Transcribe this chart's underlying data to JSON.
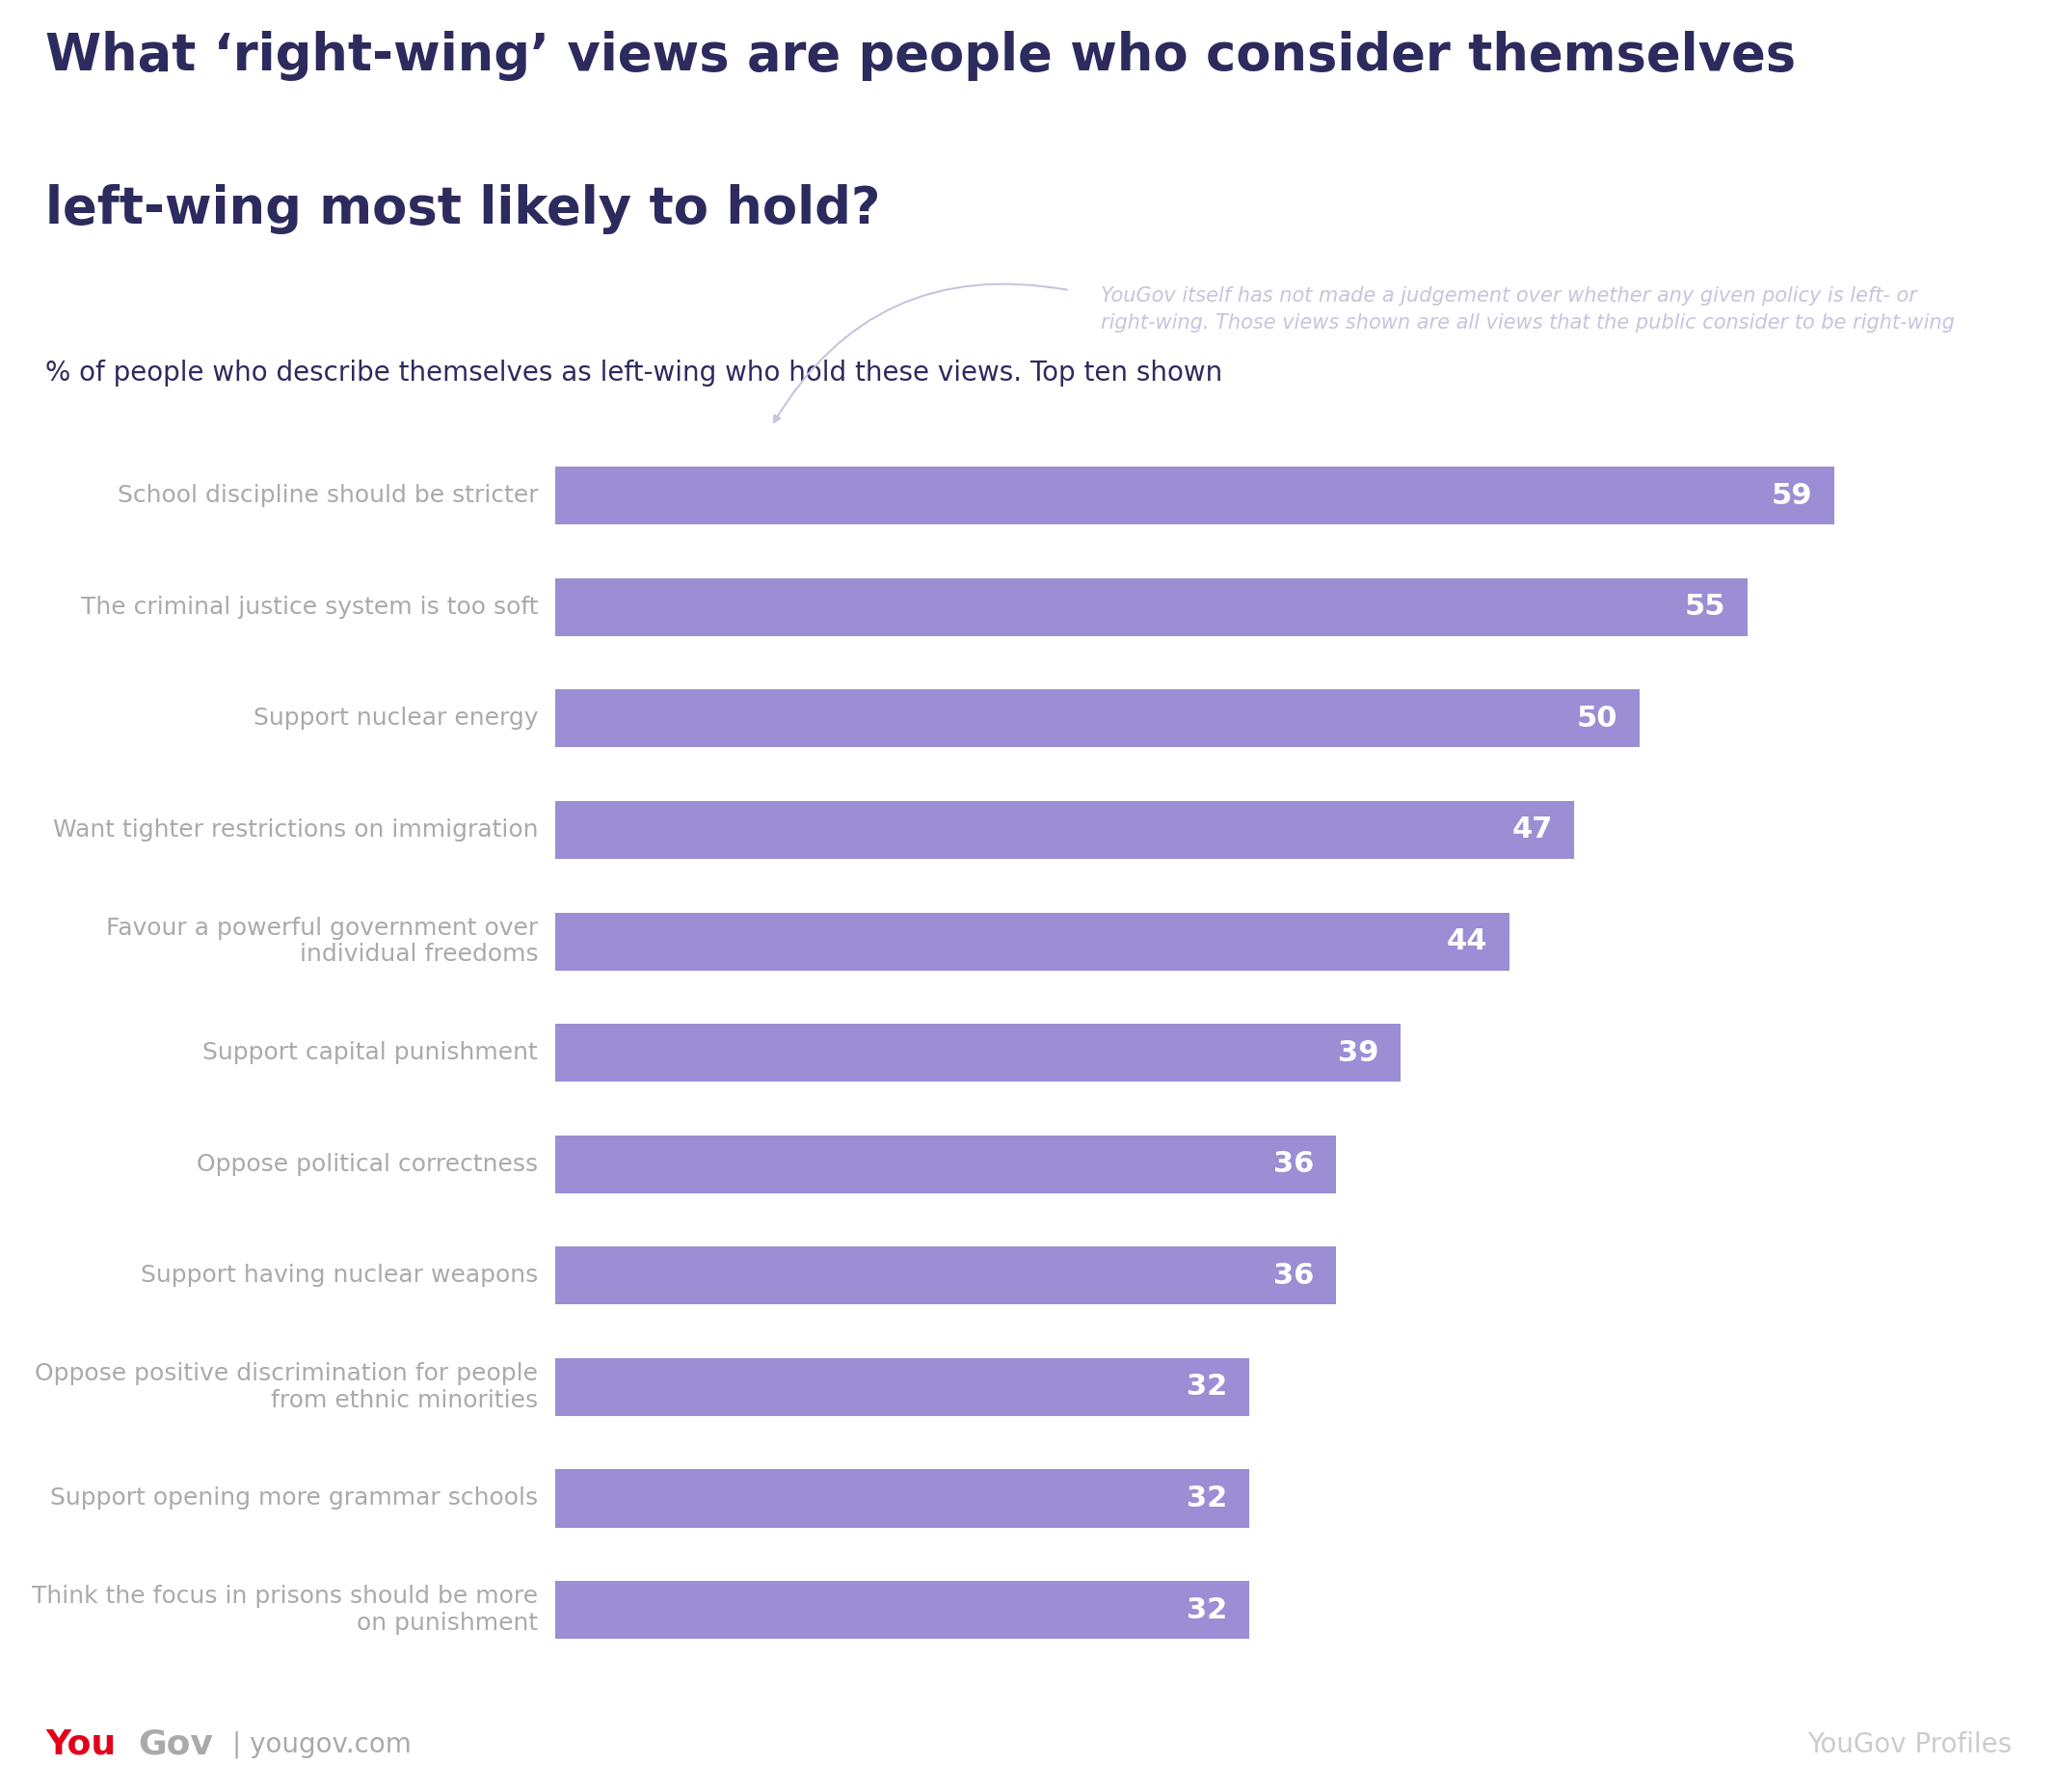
{
  "title_line1": "What ‘right-wing’ views are people who consider themselves",
  "title_line2": "left-wing most likely to hold?",
  "subtitle": "% of people who describe themselves as left-wing who hold these views. Top ten shown",
  "annotation": "YouGov itself has not made a judgement over whether any given policy is left- or\nright-wing. Those views shown are all views that the public consider to be right-wing",
  "categories": [
    "School discipline should be stricter",
    "The criminal justice system is too soft",
    "Support nuclear energy",
    "Want tighter restrictions on immigration",
    "Favour a powerful government over\nindividual freedoms",
    "Support capital punishment",
    "Oppose political correctness",
    "Support having nuclear weapons",
    "Oppose positive discrimination for people\nfrom ethnic minorities",
    "Support opening more grammar schools",
    "Think the focus in prisons should be more\non punishment"
  ],
  "values": [
    59,
    55,
    50,
    47,
    44,
    39,
    36,
    36,
    32,
    32,
    32
  ],
  "bar_color": "#9b8ed4",
  "bar_label_color": "#ffffff",
  "title_color": "#2d2a5e",
  "subtitle_color": "#2d2a5e",
  "category_label_color": "#aaaaaa",
  "annotation_color": "#c8c4dc",
  "background_color": "#ffffff",
  "header_bg_color": "#eae8f2",
  "yougov_red": "#e3001b",
  "yougov_gray": "#aaaaaa",
  "footer_text_color": "#cccccc"
}
